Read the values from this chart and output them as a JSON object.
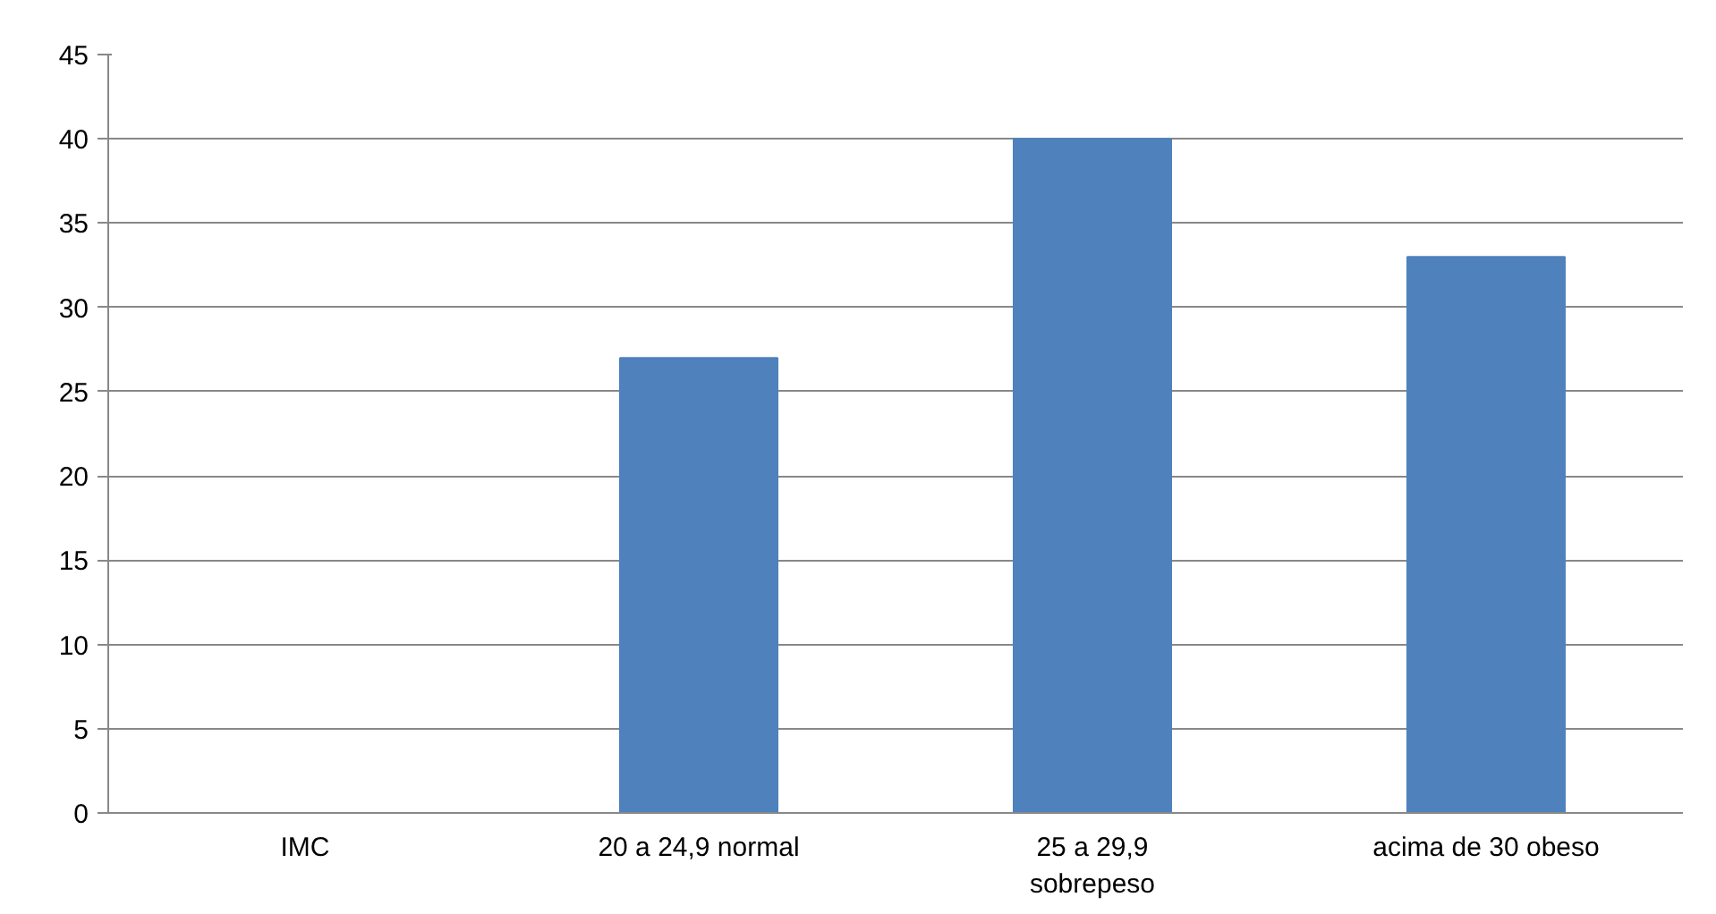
{
  "chart_data": {
    "type": "bar",
    "categories": [
      "IMC",
      "20 a 24,9 normal",
      "25 a 29,9 sobrepeso",
      "acima de 30 obeso"
    ],
    "values": [
      null,
      27,
      40,
      33
    ],
    "color": "#4f81bd",
    "ylim": [
      0,
      45
    ],
    "yticks": [
      0,
      5,
      10,
      15,
      20,
      25,
      30,
      35,
      40,
      45
    ],
    "grid": "y"
  }
}
